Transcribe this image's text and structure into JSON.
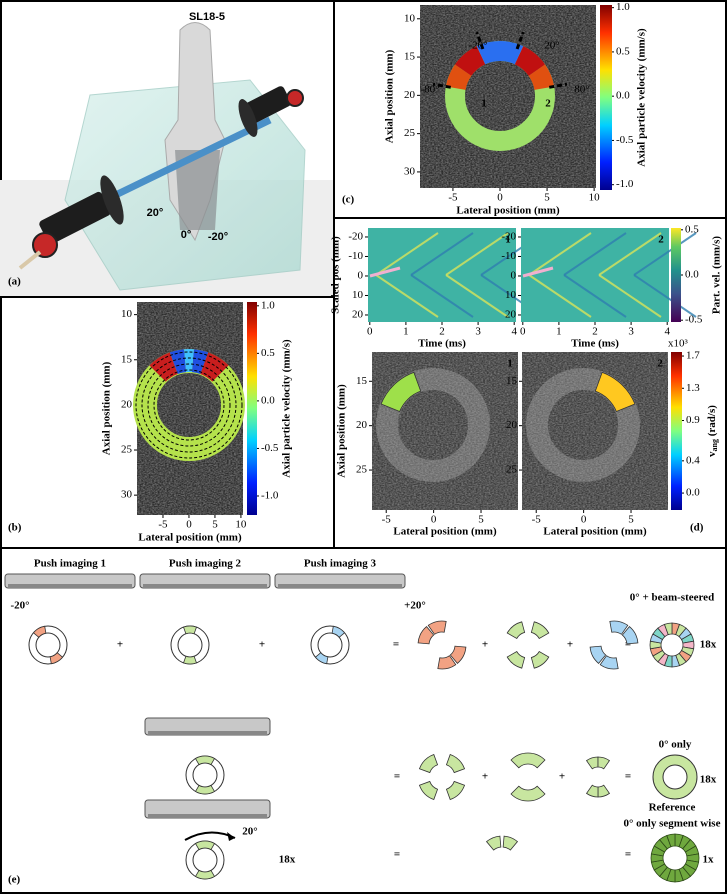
{
  "panels": {
    "a": {
      "label": "(a)",
      "probe": "SL18-5",
      "angles": [
        "20°",
        "0°",
        "-20°"
      ]
    },
    "b": {
      "label": "(b)",
      "image": {
        "xlabel": "Lateral position (mm)",
        "ylabel": "Axial position (mm)",
        "xlim": [
          -10,
          10.4
        ],
        "ylim": [
          8.6,
          32.2
        ],
        "xticks": [
          -5,
          0,
          5,
          10
        ],
        "yticks": [
          10,
          15,
          20,
          25,
          30
        ]
      },
      "colorbar": {
        "label": "Axial particle velocity (mm/s)",
        "lim": [
          -1.2,
          1.04
        ],
        "ticks": [
          {
            "value": 1,
            "label": "1.0"
          },
          0.5,
          {
            "value": 0,
            "label": "0.0"
          },
          -0.5,
          {
            "value": -1,
            "label": "-1.0"
          }
        ]
      }
    },
    "c": {
      "label": "(c)",
      "image": {
        "xlabel": "Lateral position (mm)",
        "ylabel": "Axial position (mm)",
        "xlim": [
          -8.5,
          10.2
        ],
        "ylim": [
          8.2,
          32.1
        ],
        "xticks": [
          -5,
          0,
          5,
          10
        ],
        "yticks": [
          10,
          15,
          20,
          25,
          30
        ]
      },
      "annotations": [
        "-20°",
        "20°",
        "-80°",
        "80°",
        "1",
        "2"
      ],
      "colorbar": {
        "label": "Axial particle velocity (mm/s)",
        "lim": [
          -1.06,
          1.03
        ],
        "ticks": [
          {
            "value": 1,
            "label": "1.0"
          },
          0.5,
          {
            "value": 0,
            "label": "0.0"
          },
          -0.5,
          {
            "value": -1,
            "label": "-1.0"
          }
        ]
      }
    },
    "d": {
      "label": "(d)",
      "top_left": {
        "tag": "1",
        "xlabel": "Time (ms)",
        "ylabel": "Scaled pos (mm)",
        "xlim": [
          -0.05,
          4.05
        ],
        "ylim": [
          -24.6,
          23.6
        ],
        "xticks": [
          0,
          1,
          2,
          3,
          4
        ],
        "yticks": [
          -20,
          -10,
          0,
          10,
          20
        ]
      },
      "top_right": {
        "tag": "2",
        "xlabel": "Time (ms)",
        "xlim": [
          -0.05,
          4.05
        ],
        "ylim": [
          -24.6,
          23.6
        ],
        "xticks": [
          0,
          1,
          2,
          3,
          4
        ],
        "yticks": [
          -20,
          -10,
          0,
          10,
          20
        ]
      },
      "top_colorbar": {
        "label": "Part. vel. (mm/s)",
        "lim": [
          -0.52,
          0.52
        ],
        "ticks": [
          0.5,
          {
            "value": 0,
            "label": "0.0"
          },
          -0.5
        ]
      },
      "bottom_left": {
        "tag": "1",
        "xlabel": "Lateral position (mm)",
        "ylabel": "Axial position (mm)",
        "xlim": [
          -6.5,
          8.9
        ],
        "ylim": [
          11.7,
          29.5
        ],
        "xticks": [
          -5,
          0,
          5
        ],
        "yticks": [
          15,
          20,
          25
        ]
      },
      "bottom_right": {
        "tag": "2",
        "xlabel": "Lateral position (mm)",
        "xlim": [
          -6.5,
          8.9
        ],
        "ylim": [
          11.7,
          29.5
        ],
        "xticks": [
          -5,
          0,
          5
        ],
        "yticks": [
          15,
          20,
          25
        ]
      },
      "bottom_colorbar": {
        "exponent": "x10³",
        "label_symbol": "v",
        "label_subscript": "ang",
        "label_unit": " (rad/s)",
        "lim": [
          -0.21,
          1.75
        ],
        "ticks": [
          1.7,
          1.3,
          0.9,
          0.4,
          {
            "value": 0,
            "label": "0.0"
          }
        ]
      }
    },
    "e": {
      "label": "(e)",
      "row1": {
        "push_titles": [
          "Push imaging 1",
          "Push imaging 2",
          "Push imaging 3"
        ],
        "left_angle": "-20°",
        "right_angle": "+20°",
        "operators": [
          "+",
          "+",
          "=",
          "+",
          "+",
          "="
        ],
        "result": "0° + beam-steered",
        "count": "18x"
      },
      "row2": {
        "operators": [
          "=",
          "+",
          "+",
          "="
        ],
        "result": "0° only",
        "count": "18x"
      },
      "row3": {
        "rotation": "20°",
        "rotation_count": "18x",
        "operators": [
          "=",
          "="
        ],
        "result_lines": [
          "Reference",
          "0° only segment wise"
        ],
        "count": "1x"
      }
    }
  }
}
